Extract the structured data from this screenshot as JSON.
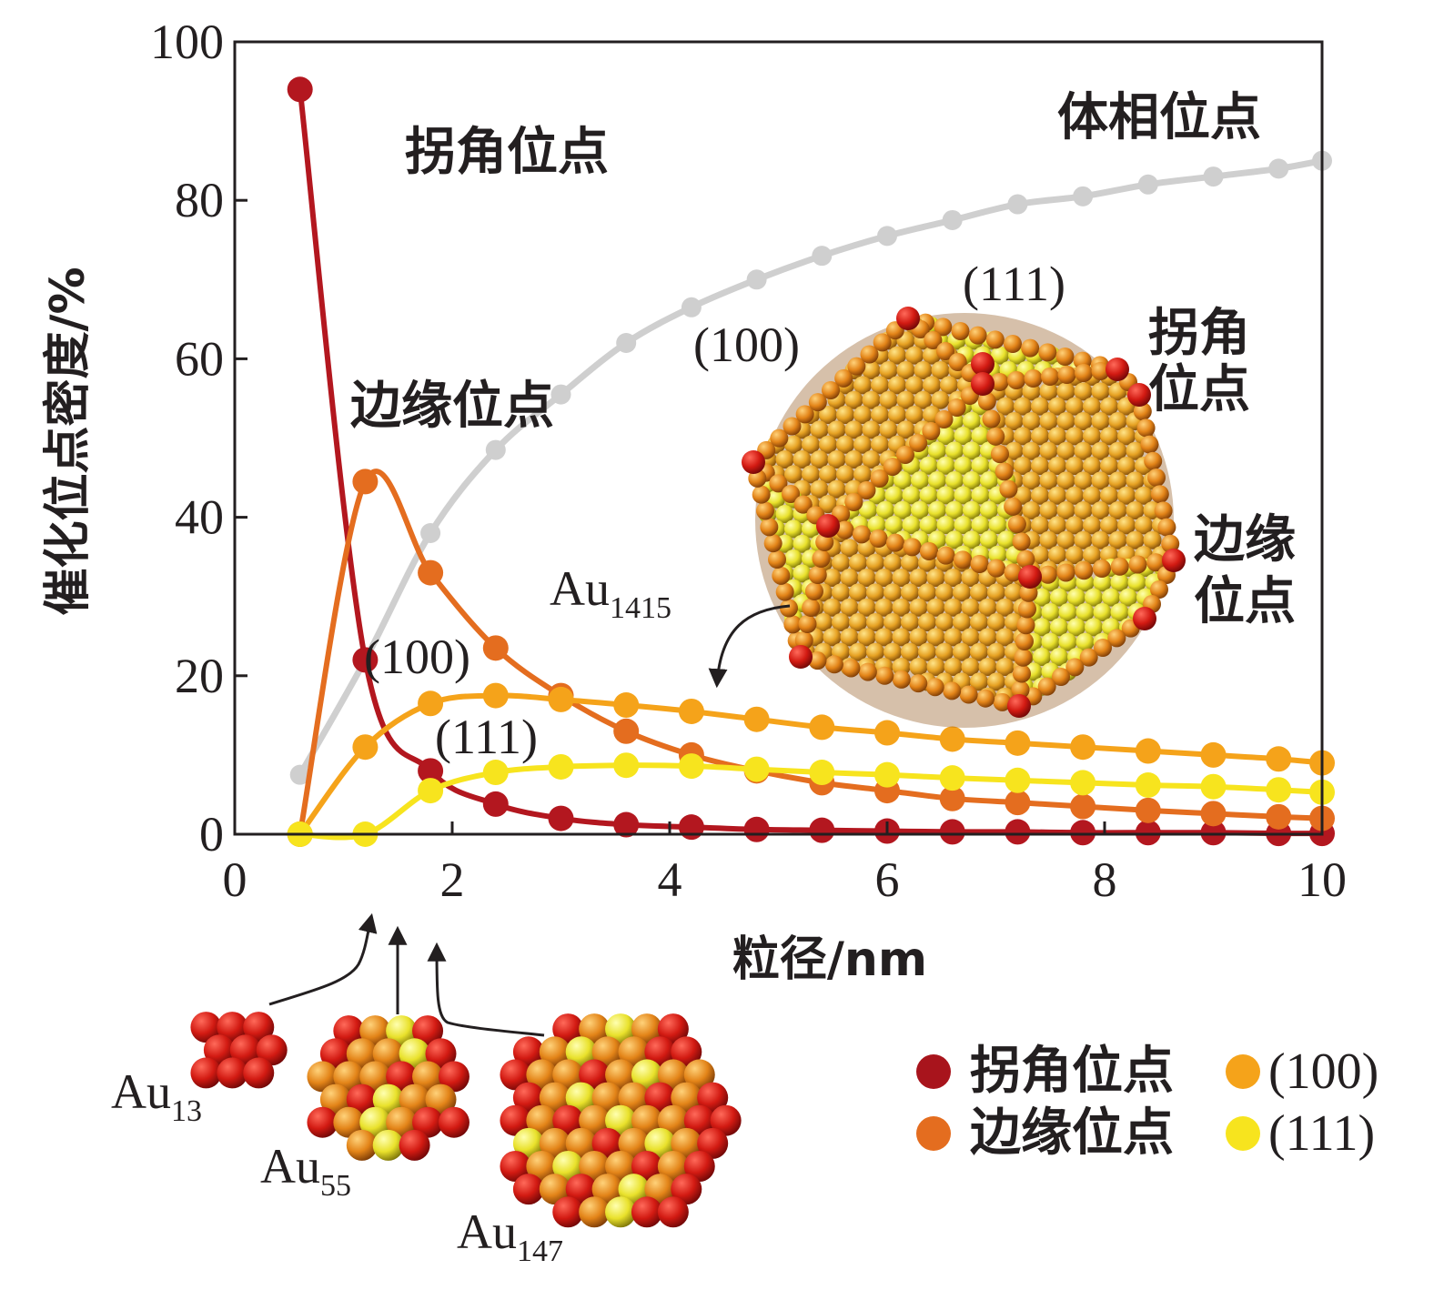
{
  "chart_data": {
    "type": "line",
    "xlabel": "粒径/nm",
    "ylabel": "催化位点密度/%",
    "xlim": [
      0,
      10
    ],
    "ylim": [
      0,
      100
    ],
    "x_ticks": [
      "0",
      "2",
      "4",
      "6",
      "8",
      "10"
    ],
    "y_ticks": [
      "0",
      "20",
      "40",
      "60",
      "80",
      "100"
    ],
    "grid": false,
    "legend_position": "bottom-right",
    "series": [
      {
        "name": "拐角位点",
        "color": "#b3171f",
        "x": [
          0.6,
          1.2,
          1.8,
          2.4,
          3.0,
          3.6,
          4.2,
          4.8,
          5.4,
          6.0,
          6.6,
          7.2,
          7.8,
          8.4,
          9.0,
          9.6,
          10.0
        ],
        "values": [
          94,
          22,
          8,
          3.8,
          2,
          1.2,
          0.9,
          0.6,
          0.5,
          0.4,
          0.3,
          0.3,
          0.2,
          0.2,
          0.2,
          0.1,
          0.1
        ]
      },
      {
        "name": "边缘位点",
        "color": "#e46d1f",
        "x": [
          0.6,
          1.2,
          1.8,
          2.4,
          3.0,
          3.6,
          4.2,
          4.8,
          5.4,
          6.0,
          6.6,
          7.2,
          7.8,
          8.4,
          9.0,
          9.6,
          10.0
        ],
        "values": [
          0,
          44.5,
          33,
          23.5,
          17.5,
          13,
          10,
          8,
          6.5,
          5.5,
          4.5,
          4,
          3.5,
          3,
          2.6,
          2.2,
          2
        ]
      },
      {
        "name": "(100)",
        "color": "#f5a31a",
        "x": [
          0.6,
          1.2,
          1.8,
          2.4,
          3.0,
          3.6,
          4.2,
          4.8,
          5.4,
          6.0,
          6.6,
          7.2,
          7.8,
          8.4,
          9.0,
          9.6,
          10.0
        ],
        "values": [
          0,
          11,
          16.5,
          17.5,
          17,
          16.3,
          15.5,
          14.5,
          13.5,
          12.8,
          12,
          11.5,
          11,
          10.5,
          10,
          9.5,
          9
        ]
      },
      {
        "name": "(111)",
        "color": "#f7e41e",
        "x": [
          0.6,
          1.2,
          1.8,
          2.4,
          3.0,
          3.6,
          4.2,
          4.8,
          5.4,
          6.0,
          6.6,
          7.2,
          7.8,
          8.4,
          9.0,
          9.6,
          10.0
        ],
        "values": [
          0,
          0,
          5.5,
          7.8,
          8.5,
          8.7,
          8.6,
          8.2,
          7.8,
          7.5,
          7.1,
          6.8,
          6.5,
          6.2,
          6,
          5.6,
          5.3
        ]
      },
      {
        "name": "体相位点",
        "color": "#cfcfcf",
        "x": [
          0.6,
          1.2,
          1.8,
          2.4,
          3.0,
          3.6,
          4.2,
          4.8,
          5.4,
          6.0,
          6.6,
          7.2,
          7.8,
          8.4,
          9.0,
          9.6,
          10.0
        ],
        "values": [
          7.5,
          22,
          38,
          48.5,
          55.5,
          62,
          66.5,
          70,
          73,
          75.5,
          77.5,
          79.5,
          80.5,
          82,
          83,
          84,
          85
        ]
      }
    ],
    "annotations": {
      "corner_label": "拐角位点",
      "edge_label": "边缘位点",
      "bulk_label": "体相位点",
      "facet_100": "(100)",
      "facet_111": "(111)",
      "big_cluster": {
        "name_base": "Au",
        "name_sub": "1415",
        "facet_100": "(100)",
        "facet_111": "(111)",
        "corner_label_1": "拐角",
        "corner_label_2": "位点",
        "edge_label_1": "边缘",
        "edge_label_2": "位点"
      },
      "small_clusters": [
        {
          "base": "Au",
          "sub": "13"
        },
        {
          "base": "Au",
          "sub": "55"
        },
        {
          "base": "Au",
          "sub": "147"
        }
      ]
    },
    "legend": [
      {
        "label": "拐角位点",
        "color": "#a8141c"
      },
      {
        "label": "(100)",
        "color": "#f5a31a"
      },
      {
        "label": "边缘位点",
        "color": "#e46d1f"
      },
      {
        "label": "(111)",
        "color": "#f7e41e"
      }
    ]
  }
}
